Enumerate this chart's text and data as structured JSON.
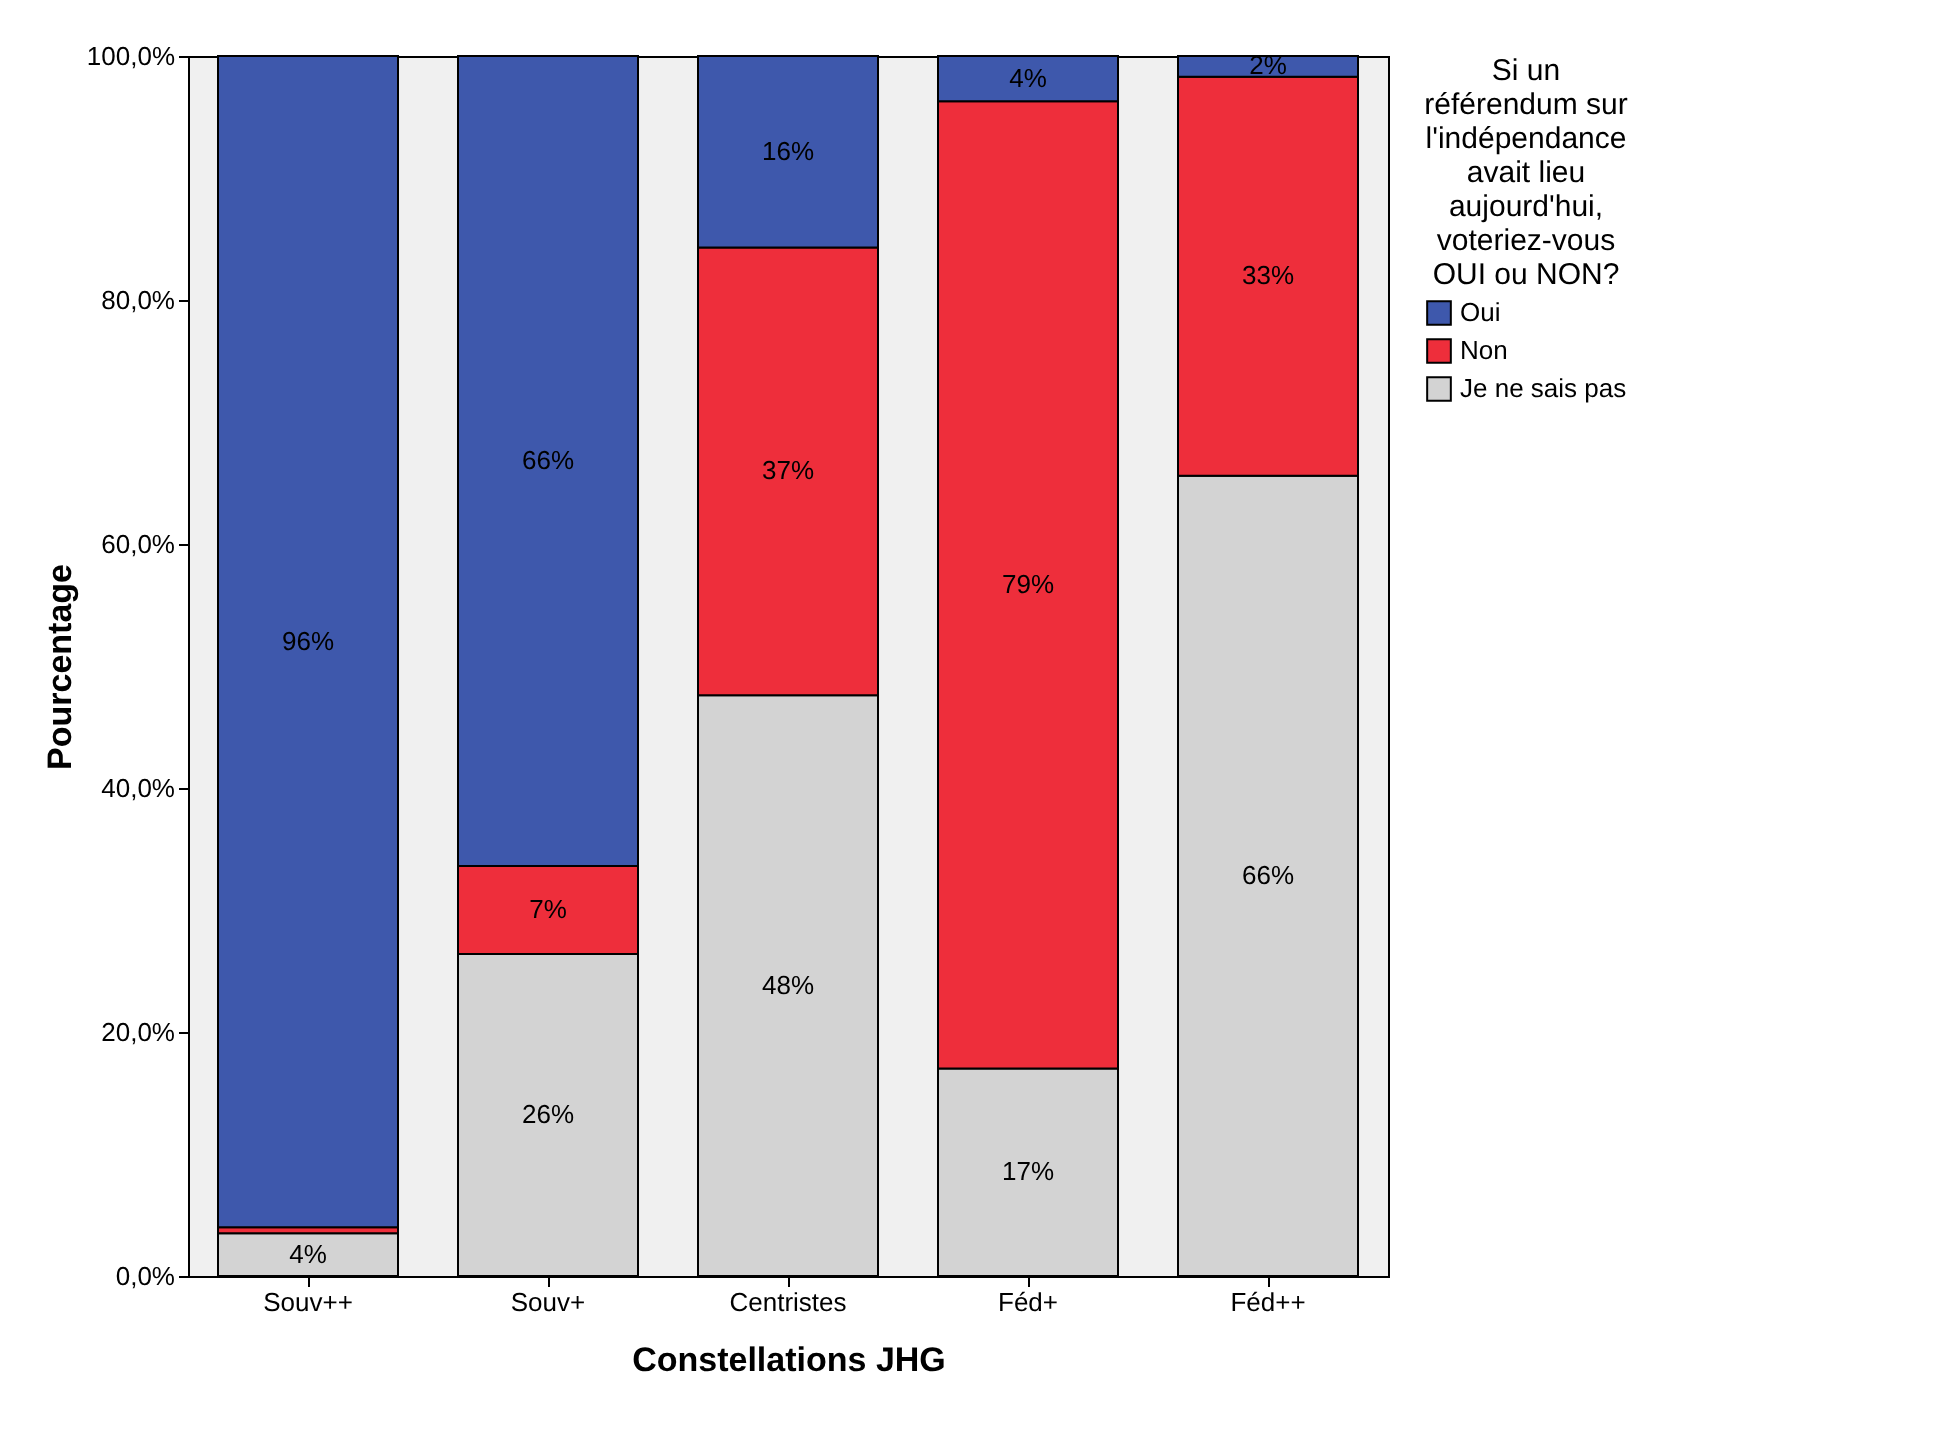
{
  "chart_data": {
    "type": "bar",
    "stacked": true,
    "xlabel": "Constellations JHG",
    "ylabel": "Pourcentage",
    "legend_title": "Si un référendum sur l'indépendance avait lieu aujourd'hui, voteriez-vous OUI ou NON?",
    "legend": "top right",
    "categories": [
      "Souv++",
      "Souv+",
      "Centristes",
      "Féd+",
      "Féd++"
    ],
    "ylim": [
      0,
      100
    ],
    "yticks": [
      {
        "value": 0,
        "label": "0,0%"
      },
      {
        "value": 20,
        "label": "20,0%"
      },
      {
        "value": 40,
        "label": "40,0%"
      },
      {
        "value": 60,
        "label": "60,0%"
      },
      {
        "value": 80,
        "label": "80,0%"
      },
      {
        "value": 100,
        "label": "100,0%"
      }
    ],
    "series": [
      {
        "name": "Je ne sais pas",
        "color": "#d3d3d3",
        "values": [
          3.5,
          26.4,
          47.6,
          17,
          65.6
        ],
        "value_labels": [
          "4%",
          "26%",
          "48%",
          "17%",
          "66%"
        ]
      },
      {
        "name": "Non",
        "color": "#ee2e3b",
        "values": [
          0.5,
          7.2,
          36.7,
          79.3,
          32.7
        ],
        "value_labels": [
          null,
          "7%",
          "37%",
          "79%",
          "33%"
        ]
      },
      {
        "name": "Oui",
        "color": "#3e58ac",
        "values": [
          96,
          66.4,
          15.7,
          3.7,
          1.7
        ],
        "value_labels": [
          "96%",
          "66%",
          "16%",
          "4%",
          "2%"
        ]
      }
    ]
  }
}
